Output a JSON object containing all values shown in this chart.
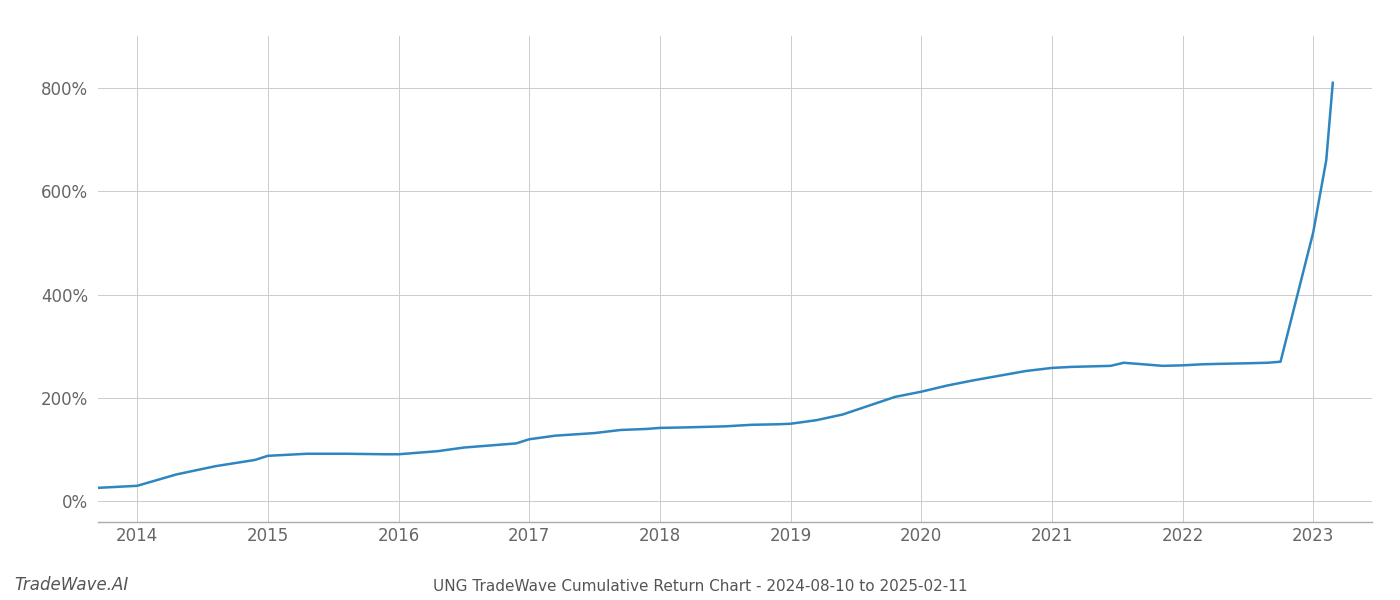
{
  "title": "UNG TradeWave Cumulative Return Chart - 2024-08-10 to 2025-02-11",
  "watermark": "TradeWave.AI",
  "x_years": [
    2014,
    2015,
    2016,
    2017,
    2018,
    2019,
    2020,
    2021,
    2022,
    2023
  ],
  "line_color": "#2e86c1",
  "line_width": 1.8,
  "background_color": "#ffffff",
  "grid_color": "#cccccc",
  "y_ticks": [
    0,
    200,
    400,
    600,
    800
  ],
  "y_labels": [
    "0%",
    "200%",
    "400%",
    "600%",
    "800%"
  ],
  "xlim": [
    2013.7,
    2023.45
  ],
  "ylim": [
    -40,
    900
  ],
  "data_x": [
    2013.62,
    2014.0,
    2014.3,
    2014.6,
    2014.9,
    2015.0,
    2015.3,
    2015.6,
    2015.9,
    2016.0,
    2016.3,
    2016.5,
    2016.7,
    2016.9,
    2017.0,
    2017.2,
    2017.5,
    2017.7,
    2017.9,
    2018.0,
    2018.2,
    2018.5,
    2018.7,
    2018.9,
    2019.0,
    2019.2,
    2019.4,
    2019.6,
    2019.8,
    2020.0,
    2020.2,
    2020.4,
    2020.6,
    2020.8,
    2021.0,
    2021.15,
    2021.3,
    2021.45,
    2021.55,
    2021.7,
    2021.85,
    2022.0,
    2022.15,
    2022.3,
    2022.5,
    2022.65,
    2022.75,
    2022.85,
    2023.0,
    2023.1,
    2023.15
  ],
  "data_y": [
    25,
    30,
    52,
    68,
    80,
    88,
    92,
    92,
    91,
    91,
    97,
    104,
    108,
    112,
    120,
    127,
    132,
    138,
    140,
    142,
    143,
    145,
    148,
    149,
    150,
    157,
    168,
    185,
    202,
    212,
    224,
    234,
    243,
    252,
    258,
    260,
    261,
    262,
    268,
    265,
    262,
    263,
    265,
    266,
    267,
    268,
    270,
    370,
    520,
    660,
    810
  ]
}
